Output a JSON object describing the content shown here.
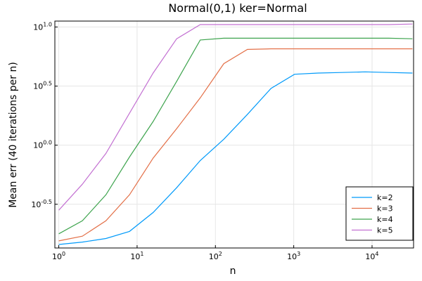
{
  "chart_data": {
    "type": "line",
    "title": "Normal(0,1) ker=Normal",
    "xlabel": "n",
    "ylabel": "Mean err (40 iterations per n)",
    "xscale": "log10",
    "yscale": "log10",
    "x_ticks": [
      {
        "value": 1,
        "base": "10",
        "exp": "0"
      },
      {
        "value": 10,
        "base": "10",
        "exp": "1"
      },
      {
        "value": 100,
        "base": "10",
        "exp": "2"
      },
      {
        "value": 1000,
        "base": "10",
        "exp": "3"
      },
      {
        "value": 10000,
        "base": "10",
        "exp": "4"
      }
    ],
    "y_ticks": [
      {
        "value": -0.5,
        "base": "10",
        "exp": "-0.5"
      },
      {
        "value": 0.0,
        "base": "10",
        "exp": "0.0"
      },
      {
        "value": 0.5,
        "base": "10",
        "exp": "0.5"
      },
      {
        "value": 1.0,
        "base": "10",
        "exp": "1.0"
      }
    ],
    "xlim_log10": [
      -0.05,
      4.53
    ],
    "ylim_log10": [
      -0.87,
      1.05
    ],
    "grid": true,
    "legend_position": "bottom-right",
    "x": [
      1,
      2,
      4,
      8,
      16,
      32,
      64,
      128,
      256,
      512,
      1024,
      2048,
      4096,
      8192,
      16384,
      32768
    ],
    "series": [
      {
        "name": "k=2",
        "color": "#009AFA",
        "log10_values": [
          -0.84,
          -0.82,
          -0.79,
          -0.73,
          -0.57,
          -0.36,
          -0.13,
          0.05,
          0.26,
          0.48,
          0.6,
          0.61,
          0.615,
          0.62,
          0.615,
          0.61
        ]
      },
      {
        "name": "k=3",
        "color": "#E36F47",
        "log10_values": [
          -0.81,
          -0.77,
          -0.64,
          -0.42,
          -0.11,
          0.14,
          0.4,
          0.69,
          0.81,
          0.815,
          0.815,
          0.815,
          0.815,
          0.815,
          0.815,
          0.815
        ]
      },
      {
        "name": "k=4",
        "color": "#3EA44E",
        "log10_values": [
          -0.75,
          -0.64,
          -0.42,
          -0.1,
          0.2,
          0.54,
          0.89,
          0.905,
          0.905,
          0.905,
          0.905,
          0.905,
          0.905,
          0.905,
          0.905,
          0.9
        ]
      },
      {
        "name": "k=5",
        "color": "#C371D2",
        "log10_values": [
          -0.55,
          -0.33,
          -0.07,
          0.27,
          0.61,
          0.9,
          1.02,
          1.02,
          1.02,
          1.02,
          1.02,
          1.02,
          1.02,
          1.02,
          1.02,
          1.025
        ]
      }
    ]
  }
}
